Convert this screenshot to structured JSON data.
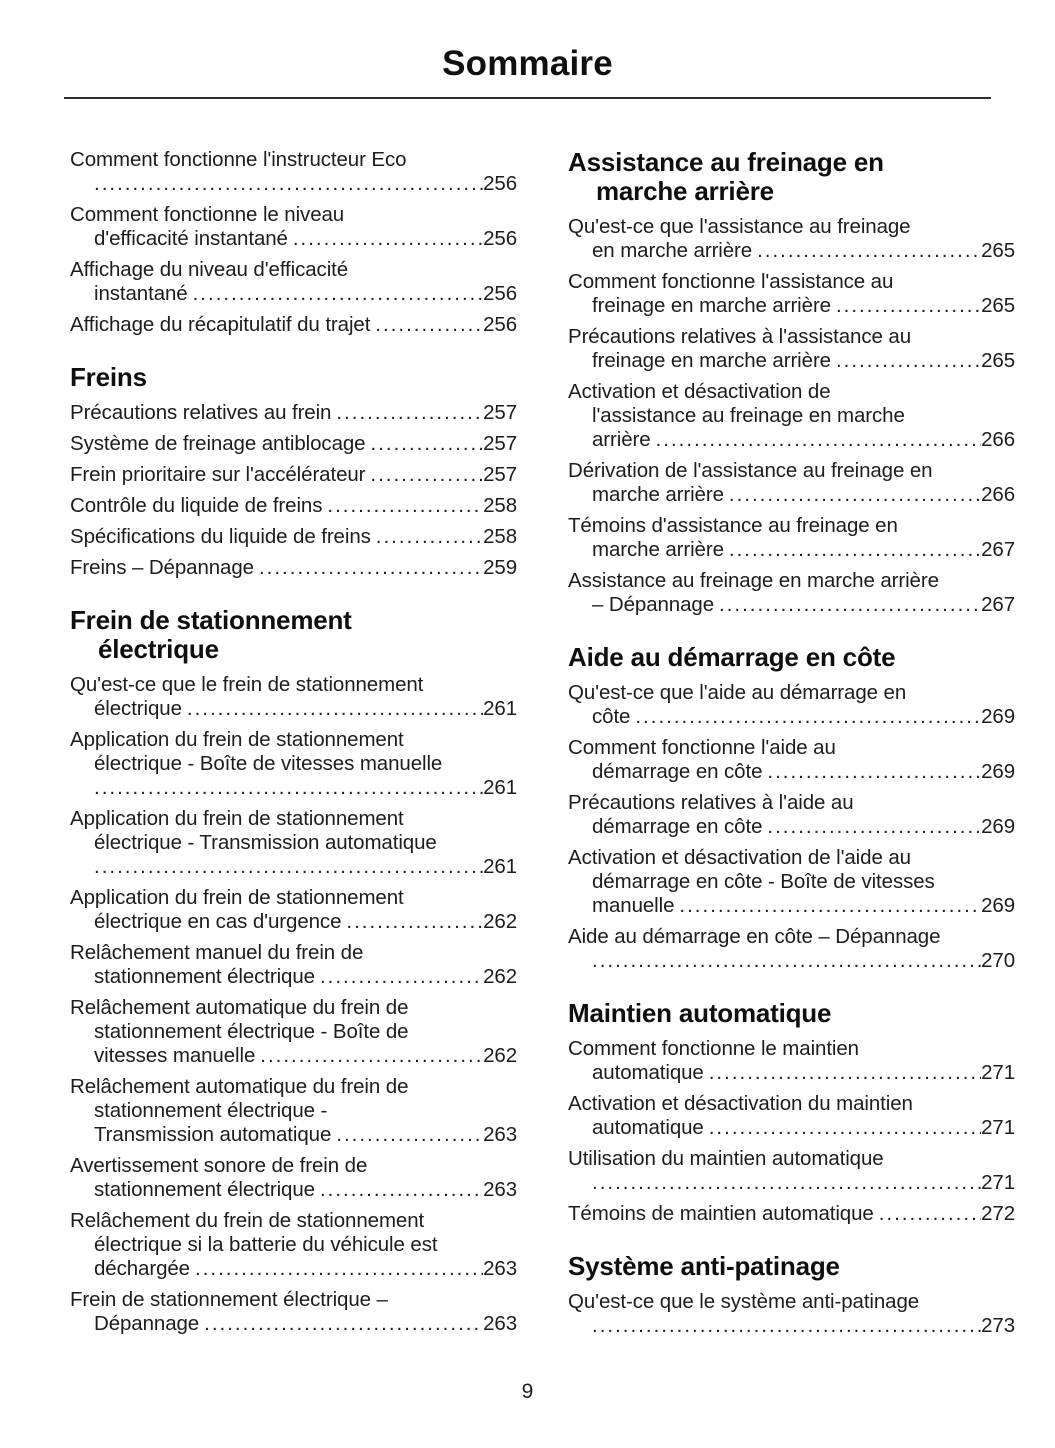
{
  "header": {
    "title": "Sommaire"
  },
  "footer": {
    "page_number": "9"
  },
  "toc": {
    "left": [
      {
        "heading": null,
        "entries": [
          {
            "lines": [
              "Comment fonctionne l'instructeur Eco",
              ""
            ],
            "page": "256"
          },
          {
            "lines": [
              "Comment fonctionne le niveau",
              "d'efficacité instantané"
            ],
            "page": "256"
          },
          {
            "lines": [
              "Affichage du niveau d'efficacité",
              "instantané"
            ],
            "page": "256"
          },
          {
            "lines": [
              "Affichage du récapitulatif du trajet"
            ],
            "page": "256"
          }
        ]
      },
      {
        "heading": [
          "Freins"
        ],
        "entries": [
          {
            "lines": [
              "Précautions relatives au frein"
            ],
            "page": "257"
          },
          {
            "lines": [
              "Système de freinage antiblocage"
            ],
            "page": "257"
          },
          {
            "lines": [
              "Frein prioritaire sur l'accélérateur"
            ],
            "page": "257"
          },
          {
            "lines": [
              "Contrôle du liquide de freins"
            ],
            "page": "258"
          },
          {
            "lines": [
              "Spécifications du liquide de freins"
            ],
            "page": "258"
          },
          {
            "lines": [
              "Freins – Dépannage"
            ],
            "page": "259"
          }
        ]
      },
      {
        "heading": [
          "Frein de stationnement",
          "électrique"
        ],
        "entries": [
          {
            "lines": [
              "Qu'est-ce que le frein de stationnement",
              "électrique"
            ],
            "page": "261"
          },
          {
            "lines": [
              "Application du frein de stationnement",
              "électrique - Boîte de vitesses manuelle",
              ""
            ],
            "page": "261"
          },
          {
            "lines": [
              "Application du frein de stationnement",
              "électrique - Transmission automatique",
              ""
            ],
            "page": "261"
          },
          {
            "lines": [
              "Application du frein de stationnement",
              "électrique en cas d'urgence"
            ],
            "page": "262"
          },
          {
            "lines": [
              "Relâchement manuel du frein de",
              "stationnement électrique"
            ],
            "page": "262"
          },
          {
            "lines": [
              "Relâchement automatique du frein de",
              "stationnement électrique - Boîte de",
              "vitesses manuelle"
            ],
            "page": "262"
          },
          {
            "lines": [
              "Relâchement automatique du frein de",
              "stationnement électrique -",
              "Transmission automatique"
            ],
            "page": "263"
          },
          {
            "lines": [
              "Avertissement sonore de frein de",
              "stationnement électrique"
            ],
            "page": "263"
          },
          {
            "lines": [
              "Relâchement du frein de stationnement",
              "électrique si la batterie du véhicule est",
              "déchargée"
            ],
            "page": "263"
          },
          {
            "lines": [
              "Frein de stationnement électrique –",
              "Dépannage"
            ],
            "page": "263"
          }
        ]
      }
    ],
    "right": [
      {
        "heading": [
          "Assistance au freinage en",
          "marche arrière"
        ],
        "entries": [
          {
            "lines": [
              "Qu'est-ce que l'assistance au freinage",
              "en marche arrière"
            ],
            "page": "265"
          },
          {
            "lines": [
              "Comment fonctionne l'assistance au",
              "freinage en marche arrière"
            ],
            "page": "265"
          },
          {
            "lines": [
              "Précautions relatives à l'assistance au",
              "freinage en marche arrière"
            ],
            "page": "265"
          },
          {
            "lines": [
              "Activation et désactivation de",
              "l'assistance au freinage en marche",
              "arrière"
            ],
            "page": "266"
          },
          {
            "lines": [
              "Dérivation de l'assistance au freinage en",
              "marche arrière"
            ],
            "page": "266"
          },
          {
            "lines": [
              "Témoins d'assistance au freinage en",
              "marche arrière"
            ],
            "page": "267"
          },
          {
            "lines": [
              "Assistance au freinage en marche arrière",
              "– Dépannage"
            ],
            "page": "267"
          }
        ]
      },
      {
        "heading": [
          "Aide au démarrage en côte"
        ],
        "entries": [
          {
            "lines": [
              "Qu'est-ce que l'aide au démarrage en",
              "côte"
            ],
            "page": "269"
          },
          {
            "lines": [
              "Comment fonctionne l'aide au",
              "démarrage en côte"
            ],
            "page": "269"
          },
          {
            "lines": [
              "Précautions relatives à l'aide au",
              "démarrage en côte"
            ],
            "page": "269"
          },
          {
            "lines": [
              "Activation et désactivation de l'aide au",
              "démarrage en côte - Boîte de vitesses",
              "manuelle"
            ],
            "page": "269"
          },
          {
            "lines": [
              "Aide au démarrage en côte – Dépannage",
              ""
            ],
            "page": "270"
          }
        ]
      },
      {
        "heading": [
          "Maintien automatique"
        ],
        "entries": [
          {
            "lines": [
              "Comment fonctionne le maintien",
              "automatique"
            ],
            "page": "271"
          },
          {
            "lines": [
              "Activation et désactivation du maintien",
              "automatique"
            ],
            "page": "271"
          },
          {
            "lines": [
              "Utilisation du maintien automatique",
              ""
            ],
            "page": "271"
          },
          {
            "lines": [
              "Témoins de maintien automatique"
            ],
            "page": "272"
          }
        ]
      },
      {
        "heading": [
          "Système anti-patinage"
        ],
        "entries": [
          {
            "lines": [
              "Qu'est-ce que le système anti-patinage",
              ""
            ],
            "page": "273"
          }
        ]
      }
    ]
  }
}
